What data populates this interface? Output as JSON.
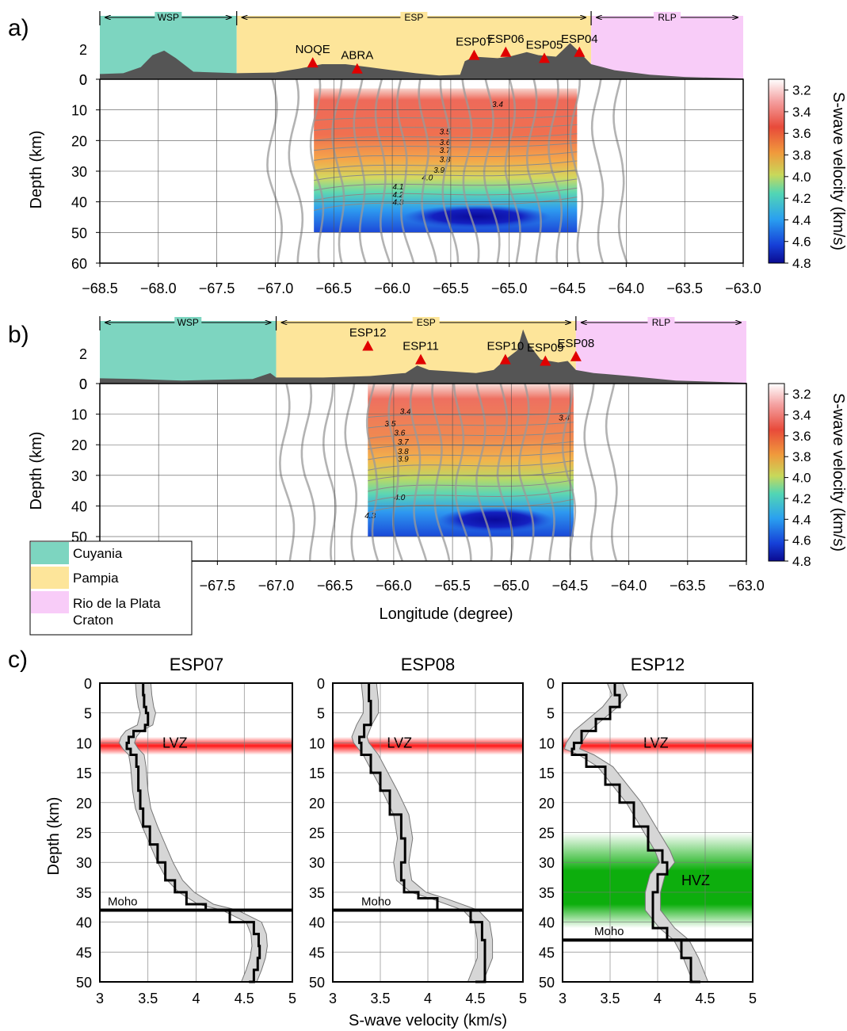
{
  "labels": {
    "section_a": "a)",
    "section_b": "b)",
    "section_c": "c)",
    "province_wsp": "WSP",
    "province_esp": "ESP",
    "province_rlp": "RLP",
    "depth_label": "Depth (km)",
    "velocity_label": "S-wave velocity (km/s)",
    "longitude_label": "Longitude (degree)",
    "lvz": "LVZ",
    "hvz": "HVZ",
    "moho": "Moho"
  },
  "legend": [
    {
      "name": "Cuyania",
      "color": "#7dd5c0"
    },
    {
      "name": "Pampia",
      "color": "#fde59a"
    },
    {
      "name": "Rio de la Plata Craton",
      "color": "#f8ccf8"
    }
  ],
  "colors": {
    "topography": "#555555",
    "station_marker": "#e00000",
    "lvz_band": "#ff0000",
    "hvz_band": "#00aa00"
  },
  "colorbar": {
    "ticks": [
      "3.2",
      "3.4",
      "3.6",
      "3.8",
      "4.0",
      "4.2",
      "4.4",
      "4.6",
      "4.8"
    ],
    "range": [
      3.1,
      4.8
    ]
  },
  "chart_data": [
    {
      "type": "heatmap",
      "panel": "a",
      "xlim": [
        -68.5,
        -63.0
      ],
      "ylim": [
        0,
        60
      ],
      "x_ticks": [
        "−68.5",
        "−68.0",
        "−67.5",
        "−67.0",
        "−66.5",
        "−66.0",
        "−65.5",
        "−65.0",
        "−64.5",
        "−64.0",
        "−63.5",
        "−63.0"
      ],
      "y_ticks": [
        "0",
        "10",
        "20",
        "30",
        "40",
        "50",
        "60"
      ],
      "topo_ticks": [
        "2",
        "0"
      ],
      "provinces": [
        {
          "name": "WSP",
          "from": -68.5,
          "to": -67.33
        },
        {
          "name": "ESP",
          "from": -67.33,
          "to": -64.3
        },
        {
          "name": "RLP",
          "from": -64.3,
          "to": -63.0
        }
      ],
      "stations": [
        {
          "name": "NOQE",
          "lon": -66.68,
          "elev": 1.1
        },
        {
          "name": "ABRA",
          "lon": -66.3,
          "elev": 0.7
        },
        {
          "name": "ESP07",
          "lon": -65.3,
          "elev": 1.6
        },
        {
          "name": "ESP06",
          "lon": -65.03,
          "elev": 1.8
        },
        {
          "name": "ESP05",
          "lon": -64.7,
          "elev": 1.4
        },
        {
          "name": "ESP04",
          "lon": -64.4,
          "elev": 1.8
        }
      ],
      "topography": [
        [
          -68.5,
          0.35
        ],
        [
          -68.3,
          0.4
        ],
        [
          -68.15,
          0.8
        ],
        [
          -68.05,
          1.6
        ],
        [
          -67.95,
          1.9
        ],
        [
          -67.85,
          1.4
        ],
        [
          -67.7,
          0.5
        ],
        [
          -67.33,
          0.4
        ],
        [
          -67.0,
          0.45
        ],
        [
          -66.8,
          0.7
        ],
        [
          -66.6,
          1.0
        ],
        [
          -66.4,
          1.0
        ],
        [
          -66.2,
          0.8
        ],
        [
          -66.0,
          0.6
        ],
        [
          -65.8,
          0.4
        ],
        [
          -65.6,
          0.25
        ],
        [
          -65.42,
          0.3
        ],
        [
          -65.38,
          1.2
        ],
        [
          -65.3,
          1.5
        ],
        [
          -65.1,
          1.4
        ],
        [
          -65.0,
          1.5
        ],
        [
          -64.85,
          1.8
        ],
        [
          -64.75,
          1.6
        ],
        [
          -64.6,
          1.5
        ],
        [
          -64.48,
          2.4
        ],
        [
          -64.4,
          1.8
        ],
        [
          -64.3,
          1.0
        ],
        [
          -64.1,
          0.6
        ],
        [
          -63.8,
          0.3
        ],
        [
          -63.5,
          0.15
        ],
        [
          -63.0,
          0.05
        ]
      ],
      "grid_extent": {
        "lon": [
          -66.67,
          -64.42
        ],
        "depth": [
          3,
          50
        ]
      },
      "contour_labels": [
        {
          "text": "3.4",
          "lon": -65.1,
          "depth": 9
        },
        {
          "text": "3.5",
          "lon": -65.55,
          "depth": 18
        },
        {
          "text": "3.6",
          "lon": -65.55,
          "depth": 21.5
        },
        {
          "text": "3.7",
          "lon": -65.55,
          "depth": 24
        },
        {
          "text": "3.8",
          "lon": -65.55,
          "depth": 27
        },
        {
          "text": "3.9",
          "lon": -65.6,
          "depth": 30.5
        },
        {
          "text": "4.0",
          "lon": -65.7,
          "depth": 33
        },
        {
          "text": "4.1",
          "lon": -65.95,
          "depth": 36
        },
        {
          "text": "4.2",
          "lon": -65.95,
          "depth": 38.5
        },
        {
          "text": "4.3",
          "lon": -65.95,
          "depth": 41
        }
      ]
    },
    {
      "type": "heatmap",
      "panel": "b",
      "xlim": [
        -68.5,
        -63.0
      ],
      "ylim": [
        0,
        60
      ],
      "x_ticks": [
        "−67.5",
        "−67.0",
        "−66.5",
        "−66.0",
        "−65.5",
        "−65.0",
        "−64.5",
        "−64.0",
        "−63.5",
        "−63.0"
      ],
      "y_ticks": [
        "0",
        "10",
        "20",
        "30",
        "40",
        "50"
      ],
      "topo_ticks": [
        "2",
        "0"
      ],
      "provinces": [
        {
          "name": "WSP",
          "from": -68.5,
          "to": -67.0
        },
        {
          "name": "ESP",
          "from": -67.0,
          "to": -64.45
        },
        {
          "name": "RLP",
          "from": -64.45,
          "to": -63.0
        }
      ],
      "stations": [
        {
          "name": "ESP12",
          "lon": -66.22,
          "elev": 2.5
        },
        {
          "name": "ESP11",
          "lon": -65.77,
          "elev": 1.6
        },
        {
          "name": "ESP10",
          "lon": -65.05,
          "elev": 1.6
        },
        {
          "name": "ESP09",
          "lon": -64.71,
          "elev": 1.5
        },
        {
          "name": "ESP08",
          "lon": -64.45,
          "elev": 1.8
        }
      ],
      "topography": [
        [
          -68.5,
          0.35
        ],
        [
          -68.2,
          0.3
        ],
        [
          -67.8,
          0.2
        ],
        [
          -67.2,
          0.3
        ],
        [
          -67.05,
          0.7
        ],
        [
          -67.0,
          0.4
        ],
        [
          -66.6,
          0.4
        ],
        [
          -66.2,
          0.5
        ],
        [
          -65.9,
          0.7
        ],
        [
          -65.8,
          1.2
        ],
        [
          -65.7,
          0.9
        ],
        [
          -65.5,
          0.8
        ],
        [
          -65.3,
          0.7
        ],
        [
          -65.15,
          0.9
        ],
        [
          -65.05,
          1.6
        ],
        [
          -64.95,
          2.2
        ],
        [
          -64.9,
          3.6
        ],
        [
          -64.85,
          2.6
        ],
        [
          -64.75,
          1.6
        ],
        [
          -64.6,
          1.4
        ],
        [
          -64.52,
          1.5
        ],
        [
          -64.45,
          0.9
        ],
        [
          -64.3,
          0.7
        ],
        [
          -64.0,
          0.5
        ],
        [
          -63.6,
          0.2
        ],
        [
          -63.0,
          0.05
        ]
      ],
      "grid_extent": {
        "lon": [
          -66.22,
          -64.47
        ],
        "depth": [
          0,
          50
        ]
      },
      "contour_labels": [
        {
          "text": "3.4",
          "lon": -65.9,
          "depth": 10
        },
        {
          "text": "3.5",
          "lon": -66.03,
          "depth": 14
        },
        {
          "text": "3.6",
          "lon": -65.95,
          "depth": 17
        },
        {
          "text": "3.7",
          "lon": -65.92,
          "depth": 20
        },
        {
          "text": "3.8",
          "lon": -65.92,
          "depth": 23
        },
        {
          "text": "3.9",
          "lon": -65.92,
          "depth": 25.5
        },
        {
          "text": "4.0",
          "lon": -65.95,
          "depth": 38
        },
        {
          "text": "4.3",
          "lon": -66.2,
          "depth": 44
        },
        {
          "text": "3.4",
          "lon": -64.55,
          "depth": 12
        }
      ]
    },
    {
      "type": "line",
      "panel": "c",
      "title": "ESP07",
      "xlim": [
        3,
        5
      ],
      "ylim": [
        0,
        50
      ],
      "x_ticks": [
        "3",
        "3.5",
        "4",
        "4.5",
        "5"
      ],
      "y_ticks": [
        "0",
        "5",
        "10",
        "15",
        "20",
        "25",
        "30",
        "35",
        "40",
        "45",
        "50"
      ],
      "moho_depth": 38,
      "lvz_depth": [
        9,
        12
      ],
      "profile": [
        [
          0,
          3.45
        ],
        [
          2,
          3.46
        ],
        [
          4,
          3.48
        ],
        [
          5,
          3.5
        ],
        [
          7,
          3.47
        ],
        [
          8,
          3.35
        ],
        [
          9,
          3.3
        ],
        [
          10,
          3.28
        ],
        [
          11,
          3.32
        ],
        [
          12,
          3.38
        ],
        [
          14,
          3.4
        ],
        [
          18,
          3.42
        ],
        [
          21,
          3.45
        ],
        [
          24,
          3.52
        ],
        [
          27,
          3.6
        ],
        [
          30,
          3.68
        ],
        [
          33,
          3.78
        ],
        [
          35,
          3.9
        ],
        [
          37,
          4.1
        ],
        [
          38,
          4.35
        ],
        [
          40,
          4.6
        ],
        [
          42,
          4.65
        ],
        [
          44,
          4.66
        ],
        [
          46,
          4.64
        ],
        [
          48,
          4.6
        ],
        [
          50,
          4.55
        ]
      ],
      "spread": 0.08
    },
    {
      "type": "line",
      "panel": "c",
      "title": "ESP08",
      "xlim": [
        3,
        5
      ],
      "ylim": [
        0,
        50
      ],
      "x_ticks": [
        "3",
        "3.5",
        "4",
        "4.5",
        "5"
      ],
      "y_ticks": [
        "0",
        "5",
        "10",
        "15",
        "20",
        "25",
        "30",
        "35",
        "40",
        "45",
        "50"
      ],
      "moho_depth": 38,
      "lvz_depth": [
        9,
        12
      ],
      "profile": [
        [
          0,
          3.38
        ],
        [
          3,
          3.4
        ],
        [
          5,
          3.4
        ],
        [
          7,
          3.33
        ],
        [
          9,
          3.28
        ],
        [
          10,
          3.3
        ],
        [
          12,
          3.4
        ],
        [
          15,
          3.5
        ],
        [
          18,
          3.6
        ],
        [
          22,
          3.72
        ],
        [
          26,
          3.76
        ],
        [
          30,
          3.72
        ],
        [
          33,
          3.75
        ],
        [
          35,
          3.9
        ],
        [
          36,
          4.1
        ],
        [
          38,
          4.45
        ],
        [
          40,
          4.57
        ],
        [
          43,
          4.6
        ],
        [
          46,
          4.6
        ],
        [
          50,
          4.5
        ]
      ],
      "spread": 0.08
    },
    {
      "type": "line",
      "panel": "c",
      "title": "ESP12",
      "xlim": [
        3,
        5
      ],
      "ylim": [
        0,
        50
      ],
      "x_ticks": [
        "3",
        "3.5",
        "4",
        "4.5",
        "5"
      ],
      "y_ticks": [
        "0",
        "5",
        "10",
        "15",
        "20",
        "25",
        "30",
        "35",
        "40",
        "45",
        "50"
      ],
      "moho_depth": 43,
      "lvz_depth": [
        9,
        12
      ],
      "hvz_depth": [
        25,
        41
      ],
      "profile": [
        [
          0,
          3.55
        ],
        [
          2,
          3.6
        ],
        [
          4,
          3.5
        ],
        [
          6,
          3.35
        ],
        [
          8,
          3.2
        ],
        [
          10,
          3.12
        ],
        [
          11,
          3.1
        ],
        [
          12,
          3.25
        ],
        [
          14,
          3.45
        ],
        [
          17,
          3.6
        ],
        [
          20,
          3.75
        ],
        [
          24,
          3.9
        ],
        [
          28,
          4.05
        ],
        [
          30,
          4.1
        ],
        [
          32,
          4.0
        ],
        [
          35,
          3.95
        ],
        [
          38,
          3.95
        ],
        [
          41,
          4.1
        ],
        [
          43,
          4.25
        ],
        [
          46,
          4.35
        ],
        [
          50,
          4.45
        ]
      ],
      "spread": 0.08
    }
  ]
}
